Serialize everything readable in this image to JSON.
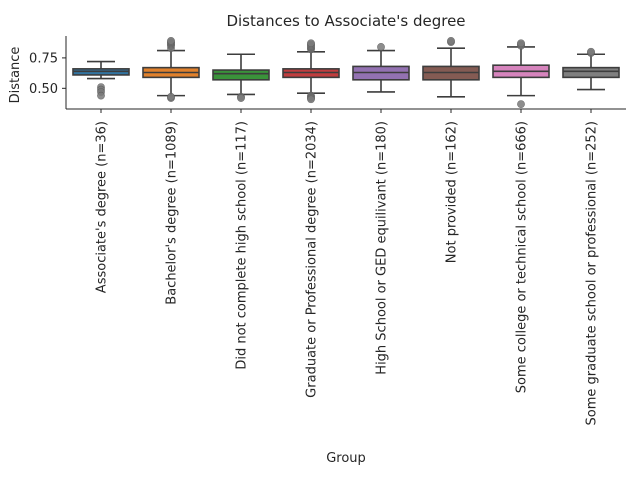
{
  "chart_data": {
    "type": "box",
    "title": "Distances to Associate's degree",
    "xlabel": "Group",
    "ylabel": "Distance",
    "ylim": [
      0.33,
      0.93
    ],
    "yticks": [
      0.5,
      0.75
    ],
    "ytick_labels": [
      "0.50",
      "0.75"
    ],
    "grid": false,
    "categories": [
      "Associate's degree (n=36)",
      "Bachelor's degree (n=1089)",
      "Did not complete high school (n=117)",
      "Graduate or Professional degree (n=2034)",
      "High School or GED equilivant (n=180)",
      "Not provided (n=162)",
      "Some college or technical school (n=666)",
      "Some graduate school or professional (n=252)"
    ],
    "colors": [
      "#3274a1",
      "#e1812c",
      "#3a923a",
      "#c03d3e",
      "#9372b2",
      "#845b53",
      "#d684bd",
      "#7f7f7f"
    ],
    "boxes": [
      {
        "whislo": 0.58,
        "q1": 0.61,
        "med": 0.64,
        "q3": 0.66,
        "whishi": 0.72,
        "fliers": [
          0.51,
          0.49,
          0.47,
          0.44
        ]
      },
      {
        "whislo": 0.44,
        "q1": 0.59,
        "med": 0.63,
        "q3": 0.67,
        "whishi": 0.81,
        "fliers": [
          0.83,
          0.85,
          0.86,
          0.87,
          0.88,
          0.89,
          0.42,
          0.43
        ]
      },
      {
        "whislo": 0.45,
        "q1": 0.57,
        "med": 0.62,
        "q3": 0.65,
        "whishi": 0.78,
        "fliers": [
          0.43,
          0.42
        ]
      },
      {
        "whislo": 0.46,
        "q1": 0.59,
        "med": 0.63,
        "q3": 0.66,
        "whishi": 0.8,
        "fliers": [
          0.82,
          0.83,
          0.84,
          0.85,
          0.86,
          0.87,
          0.44,
          0.43,
          0.42,
          0.41
        ]
      },
      {
        "whislo": 0.47,
        "q1": 0.57,
        "med": 0.63,
        "q3": 0.68,
        "whishi": 0.81,
        "fliers": [
          0.84
        ]
      },
      {
        "whislo": 0.43,
        "q1": 0.57,
        "med": 0.63,
        "q3": 0.68,
        "whishi": 0.83,
        "fliers": [
          0.88,
          0.89
        ]
      },
      {
        "whislo": 0.44,
        "q1": 0.59,
        "med": 0.64,
        "q3": 0.69,
        "whishi": 0.84,
        "fliers": [
          0.85,
          0.86,
          0.87,
          0.37
        ]
      },
      {
        "whislo": 0.49,
        "q1": 0.59,
        "med": 0.64,
        "q3": 0.67,
        "whishi": 0.78,
        "fliers": [
          0.79,
          0.8
        ]
      }
    ]
  }
}
